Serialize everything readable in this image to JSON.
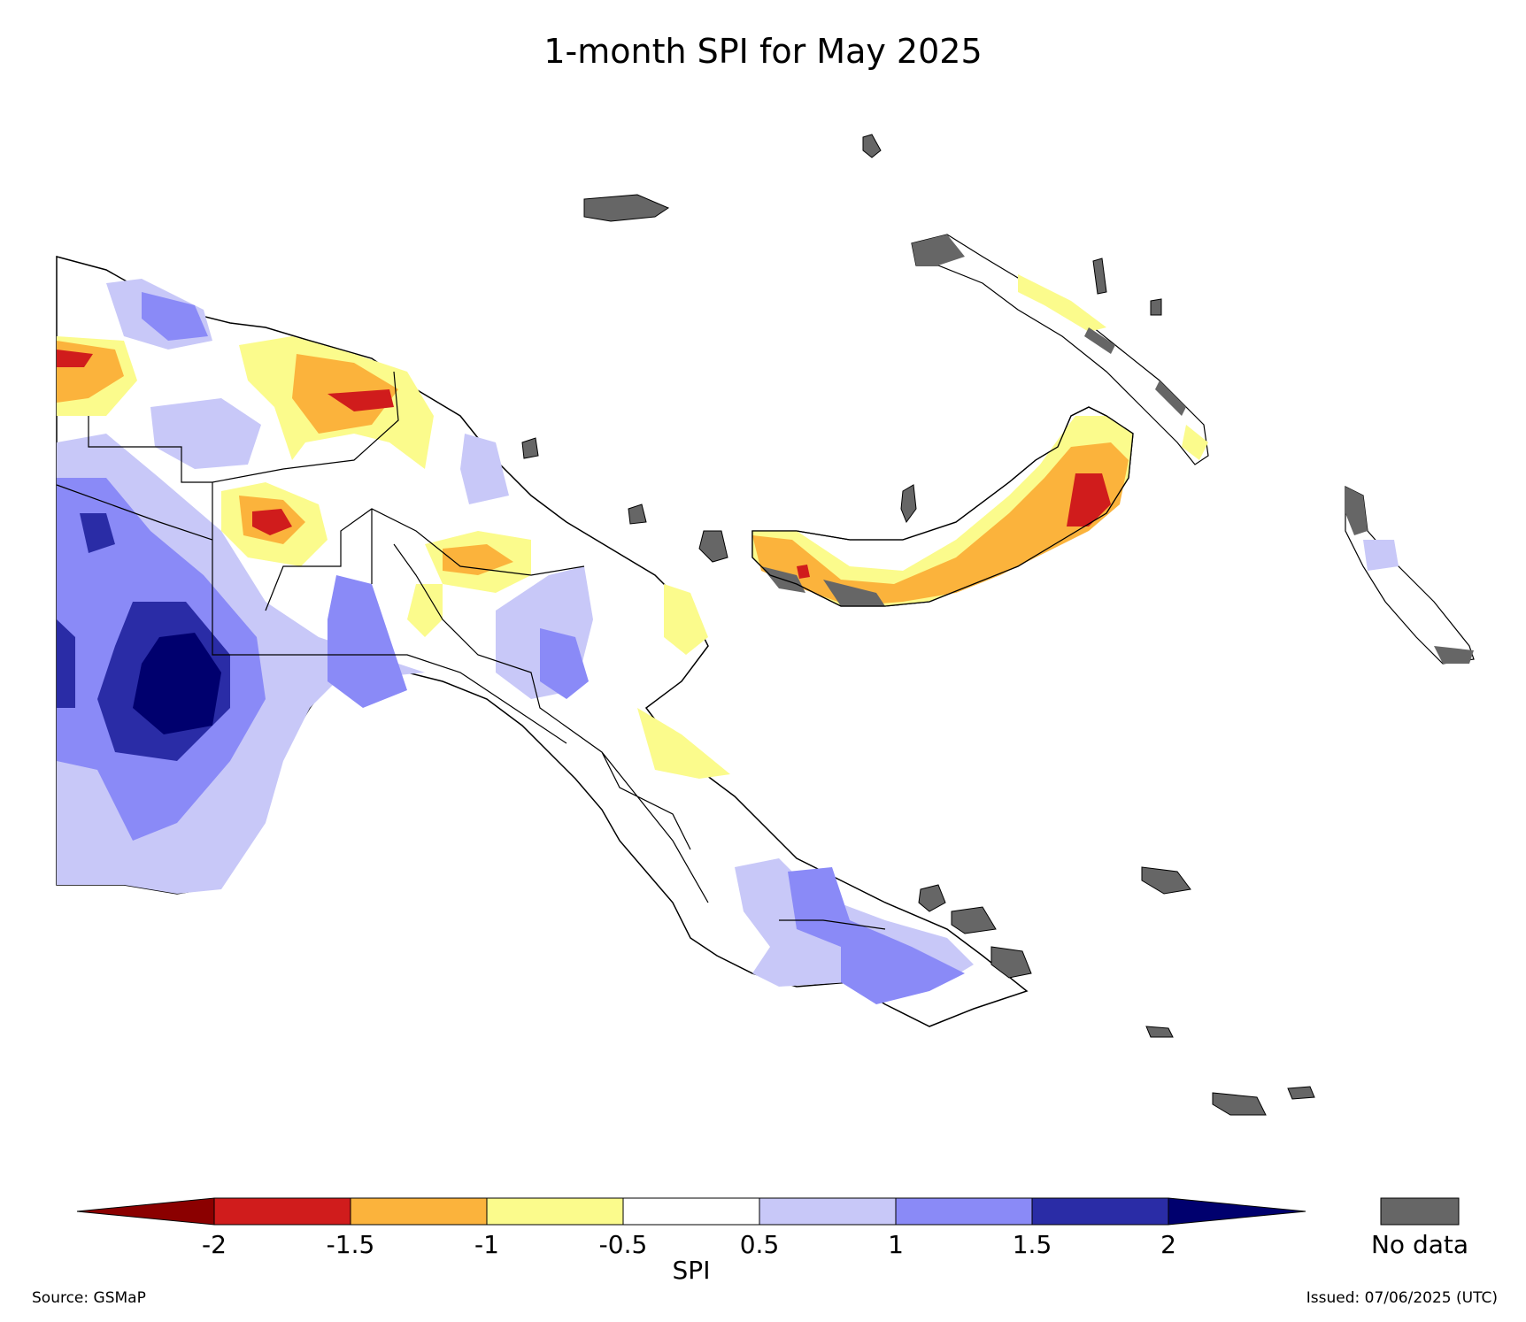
{
  "title": "1-month SPI for May 2025",
  "colorbar": {
    "label": "SPI",
    "ticks": [
      "-2",
      "-1.5",
      "-1",
      "-0.5",
      "0.5",
      "1",
      "1.5",
      "2"
    ],
    "bins": [
      {
        "range": "< -2",
        "color": "#8b0000"
      },
      {
        "range": "-2 to -1.5",
        "color": "#d01c1c"
      },
      {
        "range": "-1.5 to -1",
        "color": "#fbb33c"
      },
      {
        "range": "-1 to -0.5",
        "color": "#fbfb8c"
      },
      {
        "range": "-0.5 to 0.5",
        "color": "#ffffff"
      },
      {
        "range": "0.5 to 1",
        "color": "#c8c8f8"
      },
      {
        "range": "1 to 1.5",
        "color": "#8a8af7"
      },
      {
        "range": "1.5 to 2",
        "color": "#2a2ca6"
      },
      {
        "range": "> 2",
        "color": "#00006e"
      }
    ]
  },
  "no_data": {
    "label": "No data",
    "color": "#666666"
  },
  "source": "Source: GSMaP",
  "issued": "Issued: 07/06/2025 (UTC)"
}
